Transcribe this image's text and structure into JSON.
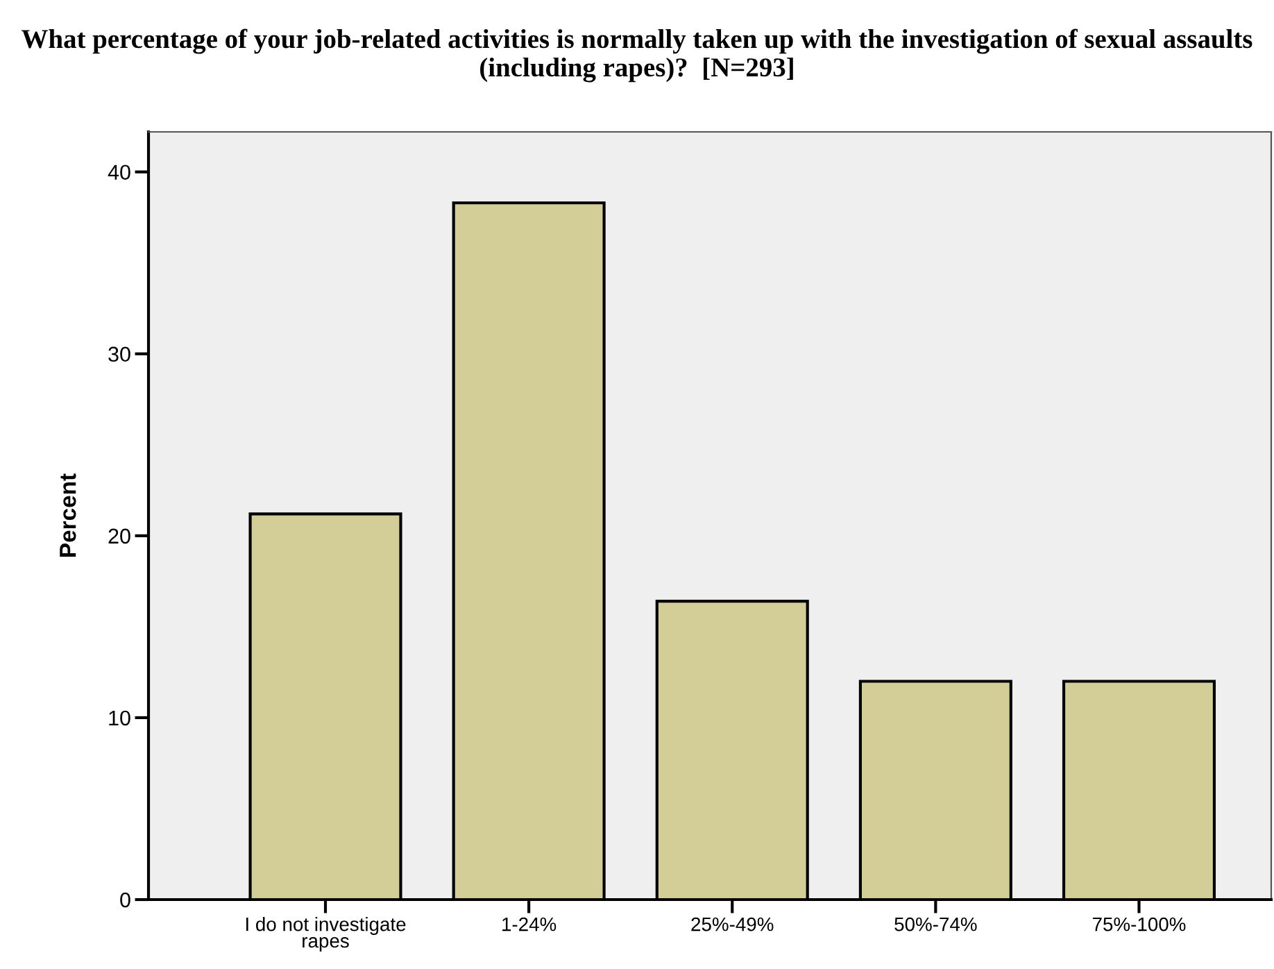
{
  "chart_data": {
    "type": "bar",
    "title": "What percentage of your job-related activities is normally taken up with the investigation of sexual assaults (including rapes)?  [N=293]",
    "ylabel": "Percent",
    "categories": [
      "I do not investigate rapes",
      "1-24%",
      "25%-49%",
      "50%-74%",
      "75%-100%"
    ],
    "values": [
      21.2,
      38.3,
      16.4,
      12.0,
      12.0
    ],
    "color": "#d3cd98",
    "ylim": [
      0,
      42.2
    ],
    "yticks": [
      0,
      10,
      20,
      30,
      40
    ],
    "grid": false,
    "legend": false
  }
}
